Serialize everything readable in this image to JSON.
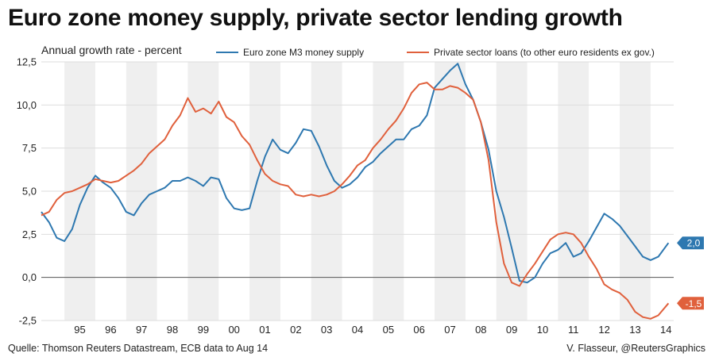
{
  "title": "Euro zone money supply, private sector lending growth",
  "source": "Quelle: Thomson Reuters Datastream, ECB data to Aug 14",
  "credit": "V. Flasseur, @ReutersGraphics",
  "colors": {
    "m3": "#2e78b0",
    "loans": "#e0603c",
    "band": "#efefef",
    "grid": "#dddddd",
    "zero": "#555555"
  },
  "chart_data": {
    "type": "line",
    "ylabel": "Annual growth rate - percent",
    "ylim": [
      -2.5,
      12.5
    ],
    "yticks": [
      "12,5",
      "10,0",
      "7,5",
      "5,0",
      "2,5",
      "0,0",
      "-2,5"
    ],
    "ytick_values": [
      12.5,
      10,
      7.5,
      5,
      2.5,
      0,
      -2.5
    ],
    "xlim": [
      1994.25,
      2014.75
    ],
    "xticks": [
      "95",
      "96",
      "97",
      "98",
      "99",
      "00",
      "01",
      "02",
      "03",
      "04",
      "05",
      "06",
      "07",
      "08",
      "09",
      "10",
      "11",
      "12",
      "13",
      "14"
    ],
    "grid": "horizontal",
    "legend": "top",
    "series": [
      {
        "name": "Euro zone M3 money supply",
        "color": "#2e78b0",
        "end_label": "2,0",
        "x": [
          1994.25,
          1994.5,
          1994.75,
          1995.0,
          1995.25,
          1995.5,
          1995.75,
          1996.0,
          1996.25,
          1996.5,
          1996.75,
          1997.0,
          1997.25,
          1997.5,
          1997.75,
          1998.0,
          1998.25,
          1998.5,
          1998.75,
          1999.0,
          1999.25,
          1999.5,
          1999.75,
          2000.0,
          2000.25,
          2000.5,
          2000.75,
          2001.0,
          2001.25,
          2001.5,
          2001.75,
          2002.0,
          2002.25,
          2002.5,
          2002.75,
          2003.0,
          2003.25,
          2003.5,
          2003.75,
          2004.0,
          2004.25,
          2004.5,
          2004.75,
          2005.0,
          2005.25,
          2005.5,
          2005.75,
          2006.0,
          2006.25,
          2006.5,
          2006.75,
          2007.0,
          2007.25,
          2007.5,
          2007.75,
          2008.0,
          2008.25,
          2008.5,
          2008.75,
          2009.0,
          2009.25,
          2009.5,
          2009.75,
          2010.0,
          2010.25,
          2010.5,
          2010.75,
          2011.0,
          2011.25,
          2011.5,
          2011.75,
          2012.0,
          2012.25,
          2012.5,
          2012.75,
          2013.0,
          2013.25,
          2013.5,
          2013.75,
          2014.0,
          2014.25,
          2014.58
        ],
        "y": [
          3.8,
          3.2,
          2.3,
          2.1,
          2.8,
          4.2,
          5.2,
          5.9,
          5.5,
          5.2,
          4.6,
          3.8,
          3.6,
          4.3,
          4.8,
          5.0,
          5.2,
          5.6,
          5.6,
          5.8,
          5.6,
          5.3,
          5.8,
          5.7,
          4.6,
          4.0,
          3.9,
          4.0,
          5.6,
          7.0,
          8.0,
          7.4,
          7.2,
          7.8,
          8.6,
          8.5,
          7.6,
          6.5,
          5.6,
          5.2,
          5.4,
          5.8,
          6.4,
          6.7,
          7.2,
          7.6,
          8.0,
          8.0,
          8.6,
          8.8,
          9.4,
          11.0,
          11.5,
          12.0,
          12.4,
          11.2,
          10.3,
          9.0,
          7.4,
          5.0,
          3.5,
          1.7,
          -0.2,
          -0.3,
          0.0,
          0.8,
          1.4,
          1.6,
          2.0,
          1.2,
          1.4,
          2.1,
          2.9,
          3.7,
          3.4,
          3.0,
          2.4,
          1.8,
          1.2,
          1.0,
          1.2,
          2.0
        ]
      },
      {
        "name": "Private sector loans (to other euro residents ex gov.)",
        "color": "#e0603c",
        "end_label": "-1,5",
        "x": [
          1994.25,
          1994.5,
          1994.75,
          1995.0,
          1995.25,
          1995.5,
          1995.75,
          1996.0,
          1996.25,
          1996.5,
          1996.75,
          1997.0,
          1997.25,
          1997.5,
          1997.75,
          1998.0,
          1998.25,
          1998.5,
          1998.75,
          1999.0,
          1999.25,
          1999.5,
          1999.75,
          2000.0,
          2000.25,
          2000.5,
          2000.75,
          2001.0,
          2001.25,
          2001.5,
          2001.75,
          2002.0,
          2002.25,
          2002.5,
          2002.75,
          2003.0,
          2003.25,
          2003.5,
          2003.75,
          2004.0,
          2004.25,
          2004.5,
          2004.75,
          2005.0,
          2005.25,
          2005.5,
          2005.75,
          2006.0,
          2006.25,
          2006.5,
          2006.75,
          2007.0,
          2007.25,
          2007.5,
          2007.75,
          2008.0,
          2008.25,
          2008.5,
          2008.75,
          2009.0,
          2009.25,
          2009.5,
          2009.75,
          2010.0,
          2010.25,
          2010.5,
          2010.75,
          2011.0,
          2011.25,
          2011.5,
          2011.75,
          2012.0,
          2012.25,
          2012.5,
          2012.75,
          2013.0,
          2013.25,
          2013.5,
          2013.75,
          2014.0,
          2014.25,
          2014.58
        ],
        "y": [
          3.6,
          3.8,
          4.5,
          4.9,
          5.0,
          5.2,
          5.4,
          5.7,
          5.6,
          5.5,
          5.6,
          5.9,
          6.2,
          6.6,
          7.2,
          7.6,
          8.0,
          8.8,
          9.4,
          10.4,
          9.6,
          9.8,
          9.5,
          10.2,
          9.3,
          9.0,
          8.2,
          7.7,
          6.8,
          6.0,
          5.6,
          5.4,
          5.3,
          4.8,
          4.7,
          4.8,
          4.7,
          4.8,
          5.0,
          5.4,
          5.9,
          6.5,
          6.8,
          7.5,
          8.0,
          8.6,
          9.1,
          9.8,
          10.7,
          11.2,
          11.3,
          10.9,
          10.9,
          11.1,
          11.0,
          10.7,
          10.3,
          9.0,
          6.8,
          3.2,
          0.8,
          -0.3,
          -0.5,
          0.2,
          0.8,
          1.5,
          2.2,
          2.5,
          2.6,
          2.5,
          2.0,
          1.2,
          0.5,
          -0.4,
          -0.7,
          -0.9,
          -1.3,
          -2.0,
          -2.3,
          -2.4,
          -2.2,
          -1.5
        ]
      }
    ]
  }
}
